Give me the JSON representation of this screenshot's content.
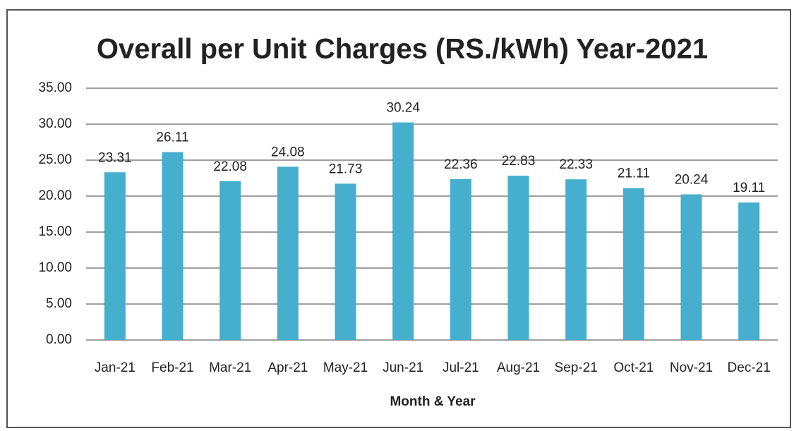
{
  "chart_data": {
    "type": "bar",
    "title": "Overall per Unit Charges (RS./kWh) Year-2021",
    "x_label": "Month & Year",
    "categories": [
      "Jan-21",
      "Feb-21",
      "Mar-21",
      "Apr-21",
      "May-21",
      "Jun-21",
      "Jul-21",
      "Aug-21",
      "Sep-21",
      "Oct-21",
      "Nov-21",
      "Dec-21"
    ],
    "values": [
      23.31,
      26.11,
      22.08,
      24.08,
      21.73,
      30.24,
      22.36,
      22.83,
      22.33,
      21.11,
      20.24,
      19.11
    ],
    "color": "#45afcd",
    "ylim": [
      0,
      35
    ],
    "yticks": [
      {
        "value": 0,
        "label": "0.00"
      },
      {
        "value": 5,
        "label": "5.00"
      },
      {
        "value": 10,
        "label": "10.00"
      },
      {
        "value": 15,
        "label": "15.00"
      },
      {
        "value": 20,
        "label": "20.00"
      },
      {
        "value": 25,
        "label": "25.00"
      },
      {
        "value": 30,
        "label": "30.00"
      },
      {
        "value": 35,
        "label": "35.00"
      }
    ],
    "grid": true
  }
}
